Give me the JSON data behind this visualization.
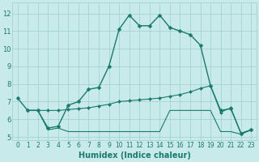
{
  "line1_x": [
    0,
    1,
    2,
    3,
    4,
    5,
    6,
    7,
    8,
    9,
    10,
    11,
    12,
    13,
    14,
    15,
    16,
    17,
    18,
    19,
    20,
    21,
    22,
    23
  ],
  "line1_y": [
    7.2,
    6.5,
    6.5,
    5.5,
    5.6,
    6.8,
    7.0,
    7.7,
    7.8,
    9.0,
    11.1,
    11.9,
    11.3,
    11.3,
    11.9,
    11.2,
    11.0,
    10.8,
    10.2,
    7.9,
    6.5,
    6.6,
    5.2,
    5.4
  ],
  "line2_x": [
    1,
    2,
    3,
    4,
    5,
    6,
    7,
    8,
    9,
    10,
    11,
    12,
    13,
    14,
    15,
    16,
    17,
    18,
    19,
    20,
    21,
    22,
    23
  ],
  "line2_y": [
    6.5,
    6.5,
    6.5,
    6.5,
    6.55,
    6.6,
    6.65,
    6.75,
    6.85,
    7.0,
    7.05,
    7.1,
    7.15,
    7.2,
    7.3,
    7.4,
    7.55,
    7.75,
    7.9,
    6.4,
    6.65,
    5.2,
    5.4
  ],
  "line3_x": [
    1,
    2,
    3,
    4,
    5,
    6,
    7,
    8,
    9,
    10,
    11,
    12,
    13,
    14,
    15,
    16,
    17,
    18,
    19,
    20,
    21,
    22,
    23
  ],
  "line3_y": [
    6.5,
    6.5,
    5.4,
    5.5,
    5.3,
    5.3,
    5.3,
    5.3,
    5.3,
    5.3,
    5.3,
    5.3,
    5.3,
    5.3,
    6.5,
    6.5,
    6.5,
    6.5,
    6.5,
    5.3,
    5.3,
    5.15,
    5.4
  ],
  "line_color": "#1a7a6e",
  "bg_color": "#c8eaea",
  "grid_color": "#9ecece",
  "xlabel": "Humidex (Indice chaleur)",
  "xlabel_fontsize": 7,
  "xlim": [
    -0.5,
    23.5
  ],
  "ylim": [
    4.8,
    12.6
  ],
  "yticks": [
    5,
    6,
    7,
    8,
    9,
    10,
    11,
    12
  ],
  "xticks": [
    0,
    1,
    2,
    3,
    4,
    5,
    6,
    7,
    8,
    9,
    10,
    11,
    12,
    13,
    14,
    15,
    16,
    17,
    18,
    19,
    20,
    21,
    22,
    23
  ],
  "xtick_labels": [
    "0",
    "1",
    "2",
    "3",
    "4",
    "5",
    "6",
    "7",
    "8",
    "9",
    "10",
    "11",
    "12",
    "13",
    "14",
    "15",
    "16",
    "17",
    "18",
    "19",
    "20",
    "21",
    "22",
    "23"
  ],
  "tick_fontsize": 5.5,
  "ytick_fontsize": 6,
  "marker_size": 2.5,
  "linewidth1": 1.0,
  "linewidth2": 0.8,
  "linewidth3": 0.8
}
